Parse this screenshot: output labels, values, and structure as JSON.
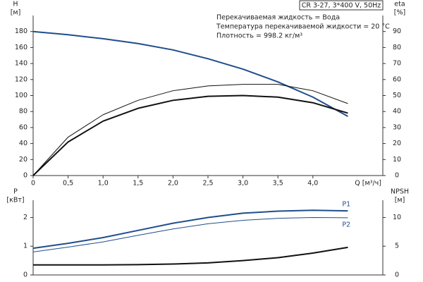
{
  "chart_data": [
    {
      "type": "line",
      "title": "CR 3-27, 3*400 V, 50Hz",
      "annotations": [
        "Перекачиваемая жидкость = Вода",
        "Температура перекачиваемой жидкости = 20 °C",
        "Плотность = 998.2 кг/м³"
      ],
      "ylabel": [
        "H",
        "[м]"
      ],
      "y2label": [
        "eta",
        "[%]"
      ],
      "xlabel": "Q [м³/ч]",
      "x": [
        0,
        0.5,
        1,
        1.5,
        2,
        2.5,
        3,
        3.5,
        4,
        4.5
      ],
      "xlim": [
        0,
        5
      ],
      "xticks": [
        0,
        {
          "value": 0.5,
          "label": "0,5"
        },
        {
          "value": 1,
          "label": "1,0"
        },
        {
          "value": 1.5,
          "label": "1,5"
        },
        {
          "value": 2,
          "label": "2,0"
        },
        {
          "value": 2.5,
          "label": "2,5"
        },
        {
          "value": 3,
          "label": "3,0"
        },
        {
          "value": 3.5,
          "label": "3,5"
        },
        {
          "value": 4,
          "label": "4,0"
        }
      ],
      "ylim": [
        0,
        200
      ],
      "yticks": [
        0,
        20,
        40,
        60,
        80,
        100,
        120,
        140,
        160,
        180
      ],
      "y2lim": [
        0,
        100
      ],
      "y2ticks": [
        0,
        10,
        20,
        30,
        40,
        50,
        60,
        70,
        80,
        90
      ],
      "series": [
        {
          "color": "#1f4e8c",
          "line_width": 2,
          "values": [
            180,
            176,
            171,
            165,
            157,
            146,
            133,
            117,
            98,
            74
          ]
        },
        {
          "color": "#111111",
          "line_width": 1,
          "axis": "y2",
          "values": [
            0,
            24,
            38,
            47,
            53,
            56,
            57,
            57,
            53,
            45
          ]
        },
        {
          "color": "#111111",
          "line_width": 2,
          "axis": "y2",
          "values": [
            0,
            21,
            34,
            42,
            47,
            49.5,
            50,
            49,
            45.5,
            39
          ]
        }
      ]
    },
    {
      "type": "line",
      "ylabel": [
        "P",
        "[кВт]"
      ],
      "y2label": [
        "NPSH",
        "[м]"
      ],
      "x": [
        0,
        0.5,
        1,
        1.5,
        2,
        2.5,
        3,
        3.5,
        4,
        4.5
      ],
      "xlim": [
        0,
        5
      ],
      "ylim": [
        0,
        2.6
      ],
      "yticks": [
        0,
        1,
        2
      ],
      "y2lim": [
        0,
        13
      ],
      "y2ticks": [
        0,
        5,
        10
      ],
      "series": [
        {
          "name": "P1",
          "color": "#1f4e8c",
          "line_width": 2,
          "values": [
            0.93,
            1.1,
            1.3,
            1.55,
            1.8,
            2.0,
            2.15,
            2.22,
            2.25,
            2.23
          ]
        },
        {
          "name": "P2",
          "color": "#1f4e8c",
          "line_width": 1,
          "values": [
            0.8,
            0.97,
            1.15,
            1.38,
            1.6,
            1.78,
            1.9,
            1.97,
            2.0,
            1.99
          ]
        },
        {
          "color": "#111111",
          "line_width": 2,
          "axis": "y2",
          "values": [
            1.75,
            1.75,
            1.75,
            1.8,
            1.9,
            2.1,
            2.5,
            3.0,
            3.8,
            4.8
          ]
        }
      ]
    }
  ]
}
